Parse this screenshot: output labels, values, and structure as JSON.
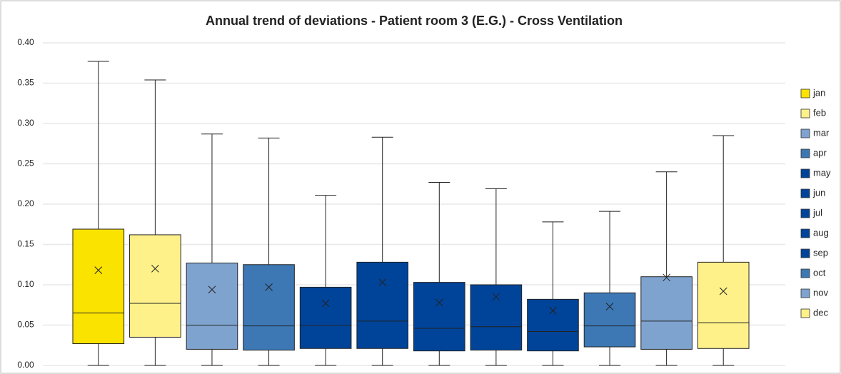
{
  "chart_data": {
    "type": "box",
    "title": "Annual trend of deviations - Patient room 3 (E.G.) - Cross Ventilation",
    "ylim": [
      0,
      0.4
    ],
    "yticks": [
      {
        "value": 0,
        "label": "0.00"
      },
      0.05,
      {
        "value": 0.1,
        "label": "0.10"
      },
      0.15,
      {
        "value": 0.2,
        "label": "0.20"
      },
      0.25,
      {
        "value": 0.3,
        "label": "0.30"
      },
      0.35,
      {
        "value": 0.4,
        "label": "0.40"
      }
    ],
    "grid": true,
    "legend": "right",
    "boxes": [
      {
        "name": "jan",
        "color": "#fbe300",
        "min": 0,
        "q1": 0.027,
        "median": 0.065,
        "q3": 0.169,
        "max": 0.377,
        "mean": 0.118
      },
      {
        "name": "feb",
        "color": "#fff18a",
        "min": 0,
        "q1": 0.035,
        "median": 0.077,
        "q3": 0.162,
        "max": 0.354,
        "mean": 0.12
      },
      {
        "name": "mar",
        "color": "#7fa3cf",
        "min": 0,
        "q1": 0.02,
        "median": 0.05,
        "q3": 0.127,
        "max": 0.287,
        "mean": 0.094
      },
      {
        "name": "apr",
        "color": "#3d78b5",
        "min": 0,
        "q1": 0.019,
        "median": 0.049,
        "q3": 0.125,
        "max": 0.282,
        "mean": 0.097
      },
      {
        "name": "may",
        "color": "#00449a",
        "min": 0,
        "q1": 0.021,
        "median": 0.05,
        "q3": 0.097,
        "max": 0.211,
        "mean": 0.077
      },
      {
        "name": "jun",
        "color": "#00449a",
        "min": 0,
        "q1": 0.021,
        "median": 0.055,
        "q3": 0.128,
        "max": 0.283,
        "mean": 0.103
      },
      {
        "name": "jul",
        "color": "#00449a",
        "min": 0,
        "q1": 0.018,
        "median": 0.046,
        "q3": 0.103,
        "max": 0.227,
        "mean": 0.078
      },
      {
        "name": "aug",
        "color": "#00449a",
        "min": 0,
        "q1": 0.019,
        "median": 0.048,
        "q3": 0.1,
        "max": 0.219,
        "mean": 0.085
      },
      {
        "name": "sep",
        "color": "#00449a",
        "min": 0,
        "q1": 0.018,
        "median": 0.042,
        "q3": 0.082,
        "max": 0.178,
        "mean": 0.068
      },
      {
        "name": "oct",
        "color": "#3d78b5",
        "min": 0,
        "q1": 0.023,
        "median": 0.049,
        "q3": 0.09,
        "max": 0.191,
        "mean": 0.073
      },
      {
        "name": "nov",
        "color": "#7fa3cf",
        "min": 0,
        "q1": 0.02,
        "median": 0.055,
        "q3": 0.11,
        "max": 0.24,
        "mean": 0.109
      },
      {
        "name": "dec",
        "color": "#fff18a",
        "min": 0,
        "q1": 0.021,
        "median": 0.053,
        "q3": 0.128,
        "max": 0.285,
        "mean": 0.092
      }
    ]
  }
}
